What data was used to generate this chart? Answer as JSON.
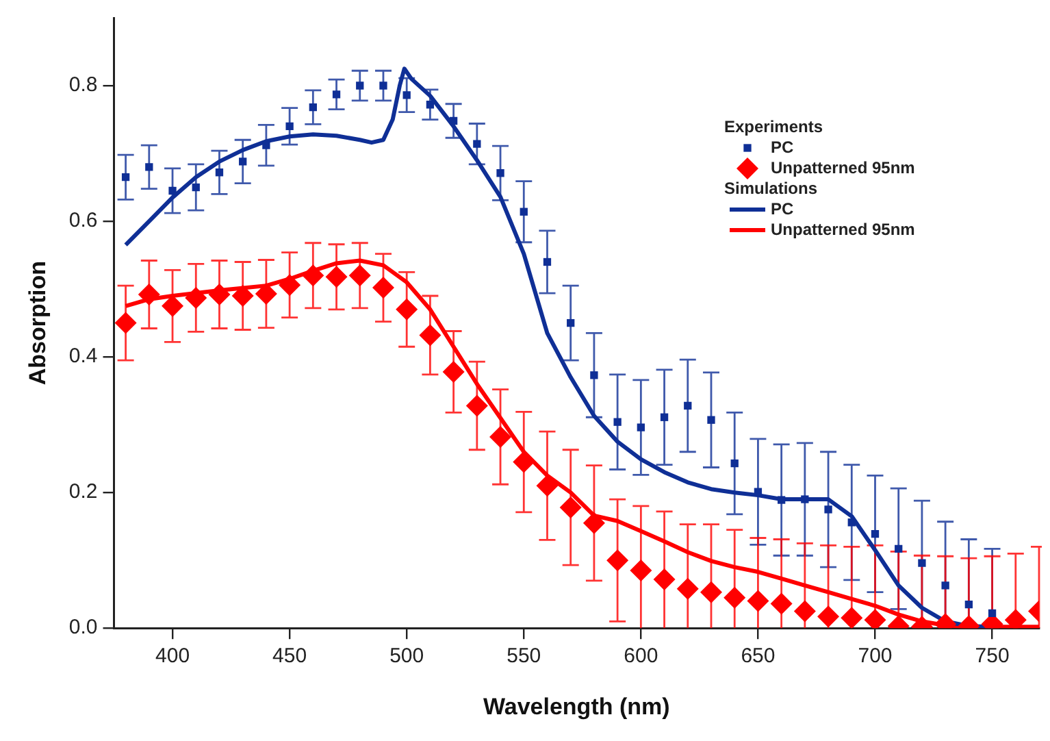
{
  "chart_data": {
    "type": "scatter",
    "xlabel": "Wavelength (nm)",
    "ylabel": "Absorption",
    "xlim": [
      375,
      770
    ],
    "xticks": [
      400,
      450,
      500,
      550,
      600,
      650,
      700,
      750
    ],
    "ylim": [
      0,
      0.9
    ],
    "yticks": [
      {
        "value": 0,
        "label": "0.0"
      },
      0.2,
      0.4,
      0.6,
      0.8
    ],
    "grid": false,
    "legend": "top right",
    "annotations": [
      "Experiments",
      "Simulations"
    ],
    "x": [
      380,
      390,
      400,
      410,
      420,
      430,
      440,
      450,
      460,
      470,
      480,
      490,
      500,
      510,
      520,
      530,
      540,
      550,
      560,
      570,
      580,
      590,
      600,
      610,
      620,
      630,
      640,
      650,
      660,
      670,
      680,
      690,
      700,
      710,
      720,
      730,
      740,
      750,
      760,
      770
    ],
    "series": [
      {
        "name": "PC",
        "marker": "square",
        "color": "#0f2f96",
        "values": [
          0.665,
          0.68,
          0.645,
          0.65,
          0.672,
          0.688,
          0.712,
          0.74,
          0.768,
          0.787,
          0.8,
          0.8,
          0.786,
          0.772,
          0.748,
          0.714,
          0.671,
          0.614,
          0.54,
          0.45,
          0.373,
          0.304,
          0.296,
          0.311,
          0.328,
          0.307,
          0.243,
          0.201,
          0.189,
          0.19,
          0.175,
          0.156,
          0.139,
          0.117,
          0.096,
          0.063,
          0.035,
          0.022,
          null,
          null
        ],
        "errors": [
          0.033,
          0.032,
          0.033,
          0.034,
          0.032,
          0.032,
          0.03,
          0.027,
          0.025,
          0.022,
          0.022,
          0.022,
          0.025,
          0.022,
          0.025,
          0.03,
          0.04,
          0.045,
          0.046,
          0.055,
          0.062,
          0.07,
          0.07,
          0.07,
          0.068,
          0.07,
          0.075,
          0.078,
          0.082,
          0.083,
          0.085,
          0.085,
          0.086,
          0.089,
          0.092,
          [
            0,
            0.157
          ],
          [
            0,
            0.131
          ],
          [
            0,
            0.117
          ],
          null,
          null
        ]
      },
      {
        "name": "Unpatterned 95nm",
        "marker": "diamond",
        "color": "#ff0000",
        "values": [
          0.45,
          0.492,
          0.475,
          0.487,
          0.492,
          0.49,
          0.493,
          0.506,
          0.52,
          0.518,
          0.52,
          0.502,
          0.47,
          0.432,
          0.378,
          0.328,
          0.282,
          0.245,
          0.21,
          0.178,
          0.155,
          0.1,
          0.085,
          0.072,
          0.058,
          0.053,
          0.045,
          0.04,
          0.036,
          0.025,
          0.017,
          0.015,
          0.012,
          0.003,
          0.002,
          0.006,
          0.003,
          0.006,
          0.012,
          0.025
        ],
        "errors": [
          0.055,
          0.05,
          0.053,
          0.05,
          0.05,
          0.05,
          0.05,
          0.048,
          0.048,
          0.048,
          0.048,
          0.05,
          0.055,
          0.058,
          0.06,
          0.065,
          0.07,
          0.074,
          0.08,
          0.085,
          0.085,
          0.09,
          [
            0,
            0.18
          ],
          [
            0,
            0.172
          ],
          [
            0,
            0.153
          ],
          [
            0,
            0.153
          ],
          [
            0,
            0.145
          ],
          [
            0,
            0.133
          ],
          [
            0,
            0.131
          ],
          [
            0,
            0.125
          ],
          [
            0,
            0.122
          ],
          [
            0,
            0.12
          ],
          [
            0,
            0.122
          ],
          [
            0,
            0.113
          ],
          [
            0,
            0.107
          ],
          [
            0,
            0.106
          ],
          [
            0,
            0.103
          ],
          [
            0,
            0.106
          ],
          [
            0,
            0.11
          ],
          [
            0,
            0.12
          ]
        ]
      },
      {
        "name": "PC",
        "type": "line",
        "marker": "none",
        "color": "#0f2f96",
        "x": [
          380,
          390,
          400,
          410,
          420,
          430,
          440,
          450,
          460,
          470,
          480,
          485,
          490,
          494,
          497,
          499,
          502,
          510,
          520,
          530,
          540,
          550,
          560,
          570,
          580,
          590,
          600,
          610,
          620,
          630,
          640,
          650,
          660,
          670,
          680,
          690,
          700,
          710,
          720,
          730,
          740,
          750
        ],
        "values": [
          0.565,
          0.6,
          0.635,
          0.665,
          0.688,
          0.705,
          0.718,
          0.725,
          0.728,
          0.726,
          0.72,
          0.716,
          0.72,
          0.75,
          0.8,
          0.825,
          0.81,
          0.785,
          0.74,
          0.69,
          0.636,
          0.552,
          0.435,
          0.37,
          0.313,
          0.275,
          0.249,
          0.23,
          0.215,
          0.205,
          0.2,
          0.196,
          0.19,
          0.19,
          0.19,
          0.165,
          0.115,
          0.063,
          0.03,
          0.01,
          0.003,
          0.002
        ]
      },
      {
        "name": "Unpatterned 95nm",
        "type": "line",
        "marker": "none",
        "color": "#ff0000",
        "x": [
          380,
          390,
          400,
          420,
          440,
          450,
          460,
          470,
          480,
          490,
          500,
          510,
          520,
          530,
          540,
          550,
          560,
          570,
          580,
          590,
          600,
          610,
          620,
          630,
          640,
          650,
          660,
          670,
          680,
          690,
          700,
          710,
          720,
          730,
          740,
          770
        ],
        "values": [
          0.475,
          0.485,
          0.49,
          0.498,
          0.505,
          0.515,
          0.527,
          0.538,
          0.542,
          0.535,
          0.51,
          0.47,
          0.415,
          0.36,
          0.31,
          0.26,
          0.225,
          0.2,
          0.166,
          0.158,
          0.143,
          0.128,
          0.112,
          0.099,
          0.09,
          0.083,
          0.073,
          0.063,
          0.053,
          0.043,
          0.033,
          0.02,
          0.01,
          0.004,
          0.002,
          0.002
        ]
      }
    ]
  }
}
